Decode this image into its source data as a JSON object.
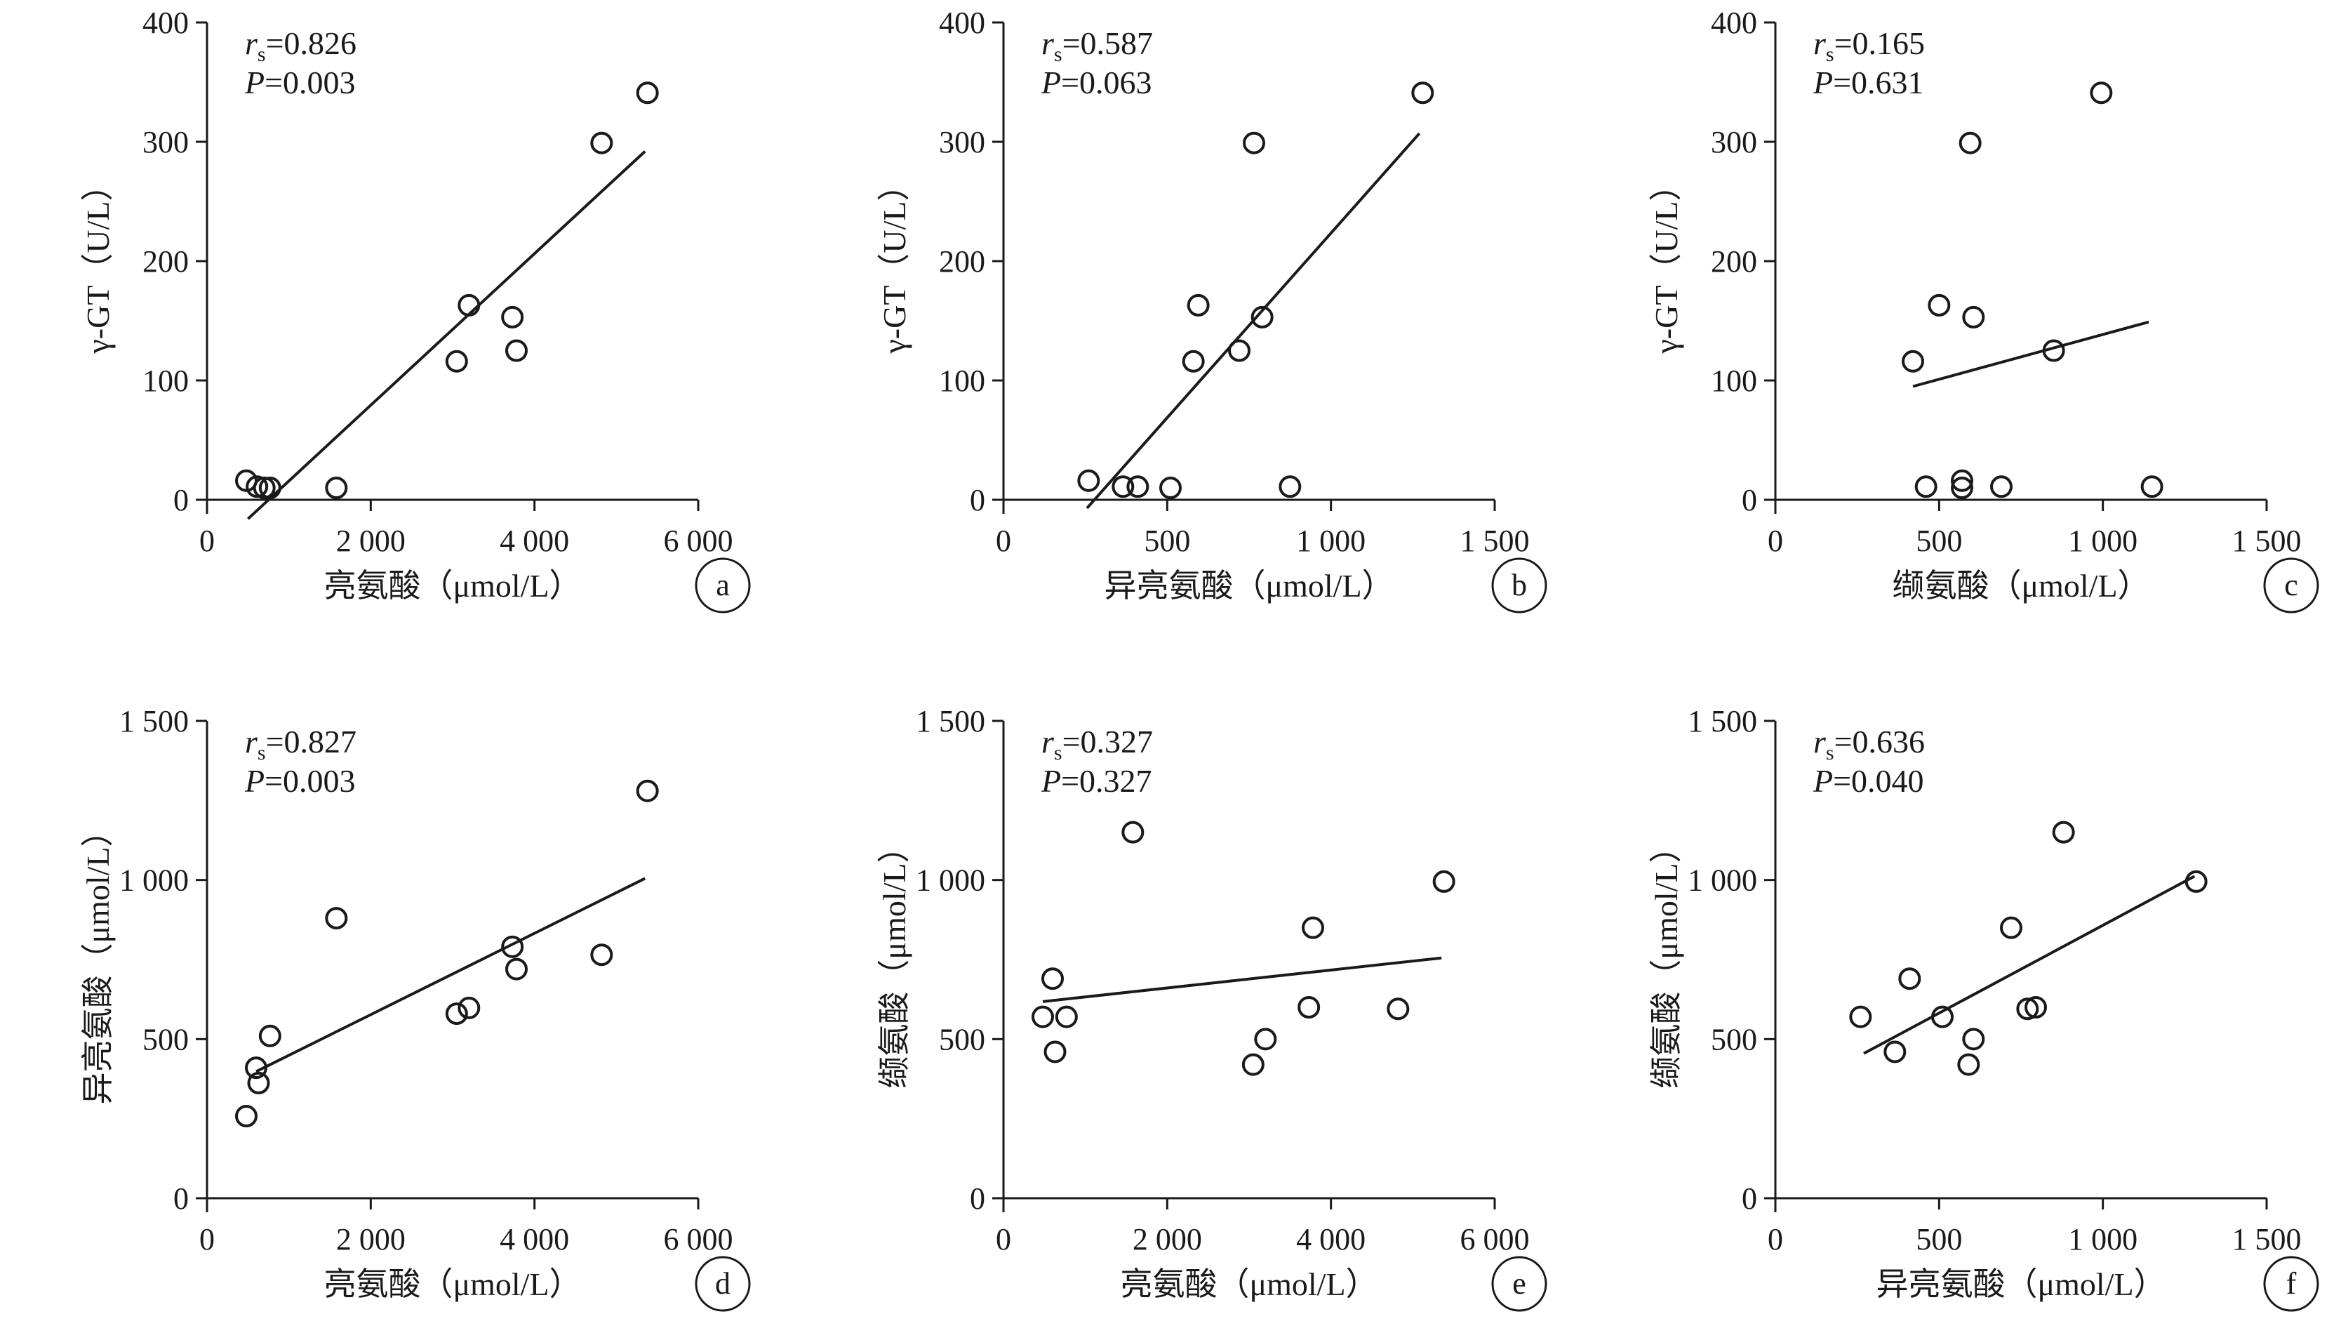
{
  "chart_data": [
    {
      "type": "scatter",
      "panel_label": "a",
      "xlabel": "亮氨酸（μmol/L）",
      "ylabel": "γ-GT（U/L）",
      "xlim": [
        0,
        6000
      ],
      "ylim": [
        0,
        400
      ],
      "x_ticks": [
        {
          "v": 0,
          "label": "0"
        },
        {
          "v": 2000,
          "label": "2 000"
        },
        {
          "v": 4000,
          "label": "4 000"
        },
        {
          "v": 6000,
          "label": "6 000"
        }
      ],
      "y_ticks": [
        {
          "v": 0,
          "label": "0"
        },
        {
          "v": 100,
          "label": "100"
        },
        {
          "v": 200,
          "label": "200"
        },
        {
          "v": 300,
          "label": "300"
        },
        {
          "v": 400,
          "label": "400"
        }
      ],
      "stat": {
        "r": "0.826",
        "p": "0.003"
      },
      "points": [
        {
          "x": 480,
          "y": 16
        },
        {
          "x": 610,
          "y": 11
        },
        {
          "x": 700,
          "y": 10
        },
        {
          "x": 770,
          "y": 10
        },
        {
          "x": 1580,
          "y": 10
        },
        {
          "x": 3050,
          "y": 116
        },
        {
          "x": 3200,
          "y": 163
        },
        {
          "x": 3730,
          "y": 153
        },
        {
          "x": 3780,
          "y": 125
        },
        {
          "x": 4820,
          "y": 299
        },
        {
          "x": 5380,
          "y": 341
        }
      ],
      "fit": {
        "x1": 500,
        "y1": -16,
        "x2": 5350,
        "y2": 292
      }
    },
    {
      "type": "scatter",
      "panel_label": "b",
      "xlabel": "异亮氨酸（μmol/L）",
      "ylabel": "γ-GT（U/L）",
      "xlim": [
        0,
        1500
      ],
      "ylim": [
        0,
        400
      ],
      "x_ticks": [
        {
          "v": 0,
          "label": "0"
        },
        {
          "v": 500,
          "label": "500"
        },
        {
          "v": 1000,
          "label": "1 000"
        },
        {
          "v": 1500,
          "label": "1 500"
        }
      ],
      "y_ticks": [
        {
          "v": 0,
          "label": "0"
        },
        {
          "v": 100,
          "label": "100"
        },
        {
          "v": 200,
          "label": "200"
        },
        {
          "v": 300,
          "label": "300"
        },
        {
          "v": 400,
          "label": "400"
        }
      ],
      "stat": {
        "r": "0.587",
        "p": "0.063"
      },
      "points": [
        {
          "x": 260,
          "y": 16
        },
        {
          "x": 365,
          "y": 11
        },
        {
          "x": 410,
          "y": 11
        },
        {
          "x": 510,
          "y": 10
        },
        {
          "x": 580,
          "y": 116
        },
        {
          "x": 595,
          "y": 163
        },
        {
          "x": 720,
          "y": 125
        },
        {
          "x": 765,
          "y": 299
        },
        {
          "x": 790,
          "y": 153
        },
        {
          "x": 875,
          "y": 11
        },
        {
          "x": 1280,
          "y": 341
        }
      ],
      "fit": {
        "x1": 255,
        "y1": -7,
        "x2": 1270,
        "y2": 307
      }
    },
    {
      "type": "scatter",
      "panel_label": "c",
      "xlabel": "缬氨酸（μmol/L）",
      "ylabel": "γ-GT（U/L）",
      "xlim": [
        0,
        1500
      ],
      "ylim": [
        0,
        400
      ],
      "x_ticks": [
        {
          "v": 0,
          "label": "0"
        },
        {
          "v": 500,
          "label": "500"
        },
        {
          "v": 1000,
          "label": "1 000"
        },
        {
          "v": 1500,
          "label": "1 500"
        }
      ],
      "y_ticks": [
        {
          "v": 0,
          "label": "0"
        },
        {
          "v": 100,
          "label": "100"
        },
        {
          "v": 200,
          "label": "200"
        },
        {
          "v": 300,
          "label": "300"
        },
        {
          "v": 400,
          "label": "400"
        }
      ],
      "stat": {
        "r": "0.165",
        "p": "0.631"
      },
      "points": [
        {
          "x": 420,
          "y": 116
        },
        {
          "x": 460,
          "y": 11
        },
        {
          "x": 500,
          "y": 163
        },
        {
          "x": 570,
          "y": 16
        },
        {
          "x": 570,
          "y": 10
        },
        {
          "x": 595,
          "y": 299
        },
        {
          "x": 605,
          "y": 153
        },
        {
          "x": 690,
          "y": 11
        },
        {
          "x": 850,
          "y": 125
        },
        {
          "x": 995,
          "y": 341
        },
        {
          "x": 1150,
          "y": 11
        }
      ],
      "fit": {
        "x1": 420,
        "y1": 95,
        "x2": 1140,
        "y2": 149
      }
    },
    {
      "type": "scatter",
      "panel_label": "d",
      "xlabel": "亮氨酸（μmol/L）",
      "ylabel": "异亮氨酸（μmol/L）",
      "xlim": [
        0,
        6000
      ],
      "ylim": [
        0,
        1500
      ],
      "x_ticks": [
        {
          "v": 0,
          "label": "0"
        },
        {
          "v": 2000,
          "label": "2 000"
        },
        {
          "v": 4000,
          "label": "4 000"
        },
        {
          "v": 6000,
          "label": "6 000"
        }
      ],
      "y_ticks": [
        {
          "v": 0,
          "label": "0"
        },
        {
          "v": 500,
          "label": "500"
        },
        {
          "v": 1000,
          "label": "1 000"
        },
        {
          "v": 1500,
          "label": "1 500"
        }
      ],
      "stat": {
        "r": "0.827",
        "p": "0.003"
      },
      "points": [
        {
          "x": 480,
          "y": 258
        },
        {
          "x": 600,
          "y": 410
        },
        {
          "x": 630,
          "y": 362
        },
        {
          "x": 770,
          "y": 510
        },
        {
          "x": 1580,
          "y": 880
        },
        {
          "x": 3050,
          "y": 580
        },
        {
          "x": 3200,
          "y": 598
        },
        {
          "x": 3730,
          "y": 790
        },
        {
          "x": 3780,
          "y": 720
        },
        {
          "x": 4820,
          "y": 765
        },
        {
          "x": 5380,
          "y": 1280
        }
      ],
      "fit": {
        "x1": 600,
        "y1": 398,
        "x2": 5350,
        "y2": 1005
      }
    },
    {
      "type": "scatter",
      "panel_label": "e",
      "xlabel": "亮氨酸（μmol/L）",
      "ylabel": "缬氨酸（μmol/L）",
      "xlim": [
        0,
        6000
      ],
      "ylim": [
        0,
        1500
      ],
      "x_ticks": [
        {
          "v": 0,
          "label": "0"
        },
        {
          "v": 2000,
          "label": "2 000"
        },
        {
          "v": 4000,
          "label": "4 000"
        },
        {
          "v": 6000,
          "label": "6 000"
        }
      ],
      "y_ticks": [
        {
          "v": 0,
          "label": "0"
        },
        {
          "v": 500,
          "label": "500"
        },
        {
          "v": 1000,
          "label": "1 000"
        },
        {
          "v": 1500,
          "label": "1 500"
        }
      ],
      "stat": {
        "r": "0.327",
        "p": "0.327"
      },
      "points": [
        {
          "x": 480,
          "y": 570
        },
        {
          "x": 600,
          "y": 690
        },
        {
          "x": 630,
          "y": 460
        },
        {
          "x": 770,
          "y": 570
        },
        {
          "x": 1580,
          "y": 1150
        },
        {
          "x": 3050,
          "y": 420
        },
        {
          "x": 3200,
          "y": 500
        },
        {
          "x": 3730,
          "y": 600
        },
        {
          "x": 3780,
          "y": 850
        },
        {
          "x": 4820,
          "y": 595
        },
        {
          "x": 5380,
          "y": 995
        }
      ],
      "fit": {
        "x1": 480,
        "y1": 618,
        "x2": 5350,
        "y2": 755
      }
    },
    {
      "type": "scatter",
      "panel_label": "f",
      "xlabel": "异亮氨酸（μmol/L）",
      "ylabel": "缬氨酸（μmol/L）",
      "xlim": [
        0,
        1500
      ],
      "ylim": [
        0,
        1500
      ],
      "x_ticks": [
        {
          "v": 0,
          "label": "0"
        },
        {
          "v": 500,
          "label": "500"
        },
        {
          "v": 1000,
          "label": "1 000"
        },
        {
          "v": 1500,
          "label": "1 500"
        }
      ],
      "y_ticks": [
        {
          "v": 0,
          "label": "0"
        },
        {
          "v": 500,
          "label": "500"
        },
        {
          "v": 1000,
          "label": "1 000"
        },
        {
          "v": 1500,
          "label": "1 500"
        }
      ],
      "stat": {
        "r": "0.636",
        "p": "0.040"
      },
      "points": [
        {
          "x": 260,
          "y": 570
        },
        {
          "x": 365,
          "y": 460
        },
        {
          "x": 410,
          "y": 690
        },
        {
          "x": 510,
          "y": 570
        },
        {
          "x": 590,
          "y": 420
        },
        {
          "x": 605,
          "y": 500
        },
        {
          "x": 720,
          "y": 850
        },
        {
          "x": 770,
          "y": 595
        },
        {
          "x": 795,
          "y": 600
        },
        {
          "x": 880,
          "y": 1150
        },
        {
          "x": 1285,
          "y": 995
        }
      ],
      "fit": {
        "x1": 270,
        "y1": 455,
        "x2": 1280,
        "y2": 1012
      }
    }
  ]
}
